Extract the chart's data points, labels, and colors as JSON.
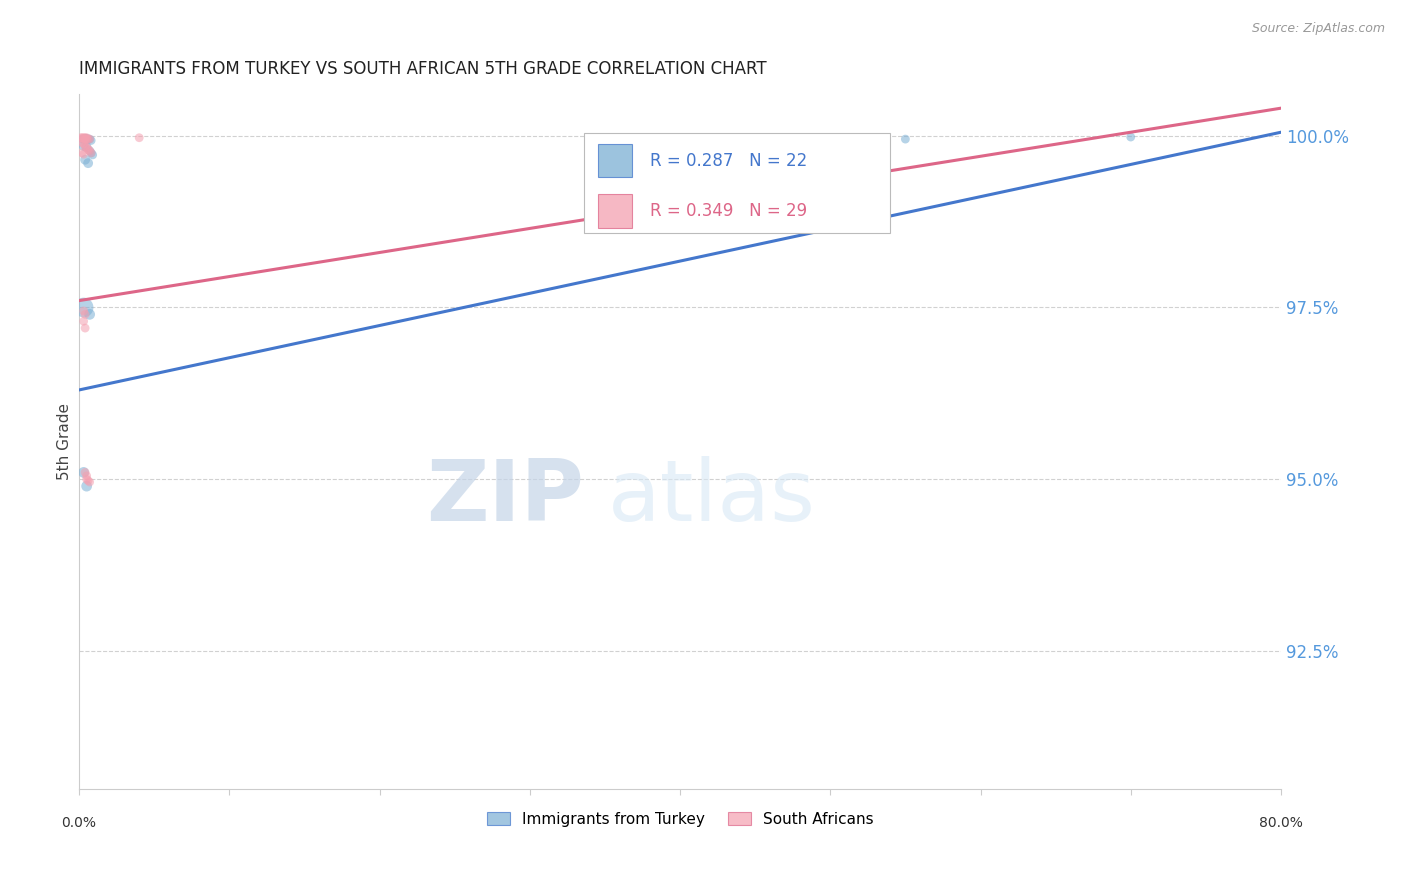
{
  "title": "IMMIGRANTS FROM TURKEY VS SOUTH AFRICAN 5TH GRADE CORRELATION CHART",
  "source": "Source: ZipAtlas.com",
  "ylabel": "5th Grade",
  "ylabel_right_ticks": [
    "100.0%",
    "97.5%",
    "95.0%",
    "92.5%"
  ],
  "ylabel_right_vals": [
    1.0,
    0.975,
    0.95,
    0.925
  ],
  "legend_blue_label": "Immigrants from Turkey",
  "legend_pink_label": "South Africans",
  "legend_r_blue": "R = 0.287",
  "legend_n_blue": "N = 22",
  "legend_r_pink": "R = 0.349",
  "legend_n_pink": "N = 29",
  "blue_color": "#7BAFD4",
  "pink_color": "#F4A0B0",
  "blue_line_color": "#4477CC",
  "pink_line_color": "#DD6688",
  "watermark_zip": "ZIP",
  "watermark_atlas": "atlas",
  "blue_scatter_x": [
    0.002,
    0.003,
    0.004,
    0.005,
    0.004,
    0.005,
    0.006,
    0.007,
    0.008,
    0.003,
    0.005,
    0.007,
    0.008,
    0.009,
    0.004,
    0.006,
    0.003,
    0.007,
    0.003,
    0.005,
    0.55,
    0.7
  ],
  "blue_scatter_y": [
    0.9995,
    0.9995,
    0.9995,
    0.9995,
    0.9995,
    0.9995,
    0.9995,
    0.9995,
    0.9993,
    0.9985,
    0.9983,
    0.9978,
    0.9975,
    0.9972,
    0.9965,
    0.996,
    0.975,
    0.974,
    0.951,
    0.949,
    0.9995,
    0.9998
  ],
  "blue_scatter_size": [
    40,
    40,
    50,
    50,
    40,
    40,
    40,
    40,
    40,
    50,
    50,
    40,
    40,
    40,
    50,
    50,
    200,
    60,
    60,
    60,
    40,
    40
  ],
  "pink_scatter_x": [
    0.001,
    0.002,
    0.003,
    0.004,
    0.005,
    0.003,
    0.004,
    0.005,
    0.006,
    0.007,
    0.002,
    0.003,
    0.004,
    0.005,
    0.006,
    0.007,
    0.008,
    0.002,
    0.003,
    0.003,
    0.004,
    0.004,
    0.005,
    0.003,
    0.004,
    0.005,
    0.006,
    0.007,
    0.04
  ],
  "pink_scatter_y": [
    0.9997,
    0.9997,
    0.9997,
    0.9997,
    0.9997,
    0.9995,
    0.9995,
    0.9995,
    0.9995,
    0.9995,
    0.999,
    0.9988,
    0.9985,
    0.9983,
    0.998,
    0.9978,
    0.9975,
    0.9975,
    0.9973,
    0.973,
    0.972,
    0.951,
    0.9505,
    0.9745,
    0.974,
    0.95,
    0.9498,
    0.9496,
    0.9997
  ],
  "pink_scatter_size": [
    40,
    40,
    40,
    40,
    40,
    40,
    40,
    40,
    40,
    40,
    40,
    40,
    40,
    40,
    40,
    40,
    40,
    40,
    40,
    40,
    40,
    40,
    40,
    40,
    40,
    40,
    40,
    40,
    40
  ],
  "blue_line_x": [
    0.0,
    0.8
  ],
  "blue_line_y": [
    0.963,
    1.0005
  ],
  "pink_line_x": [
    0.0,
    0.8
  ],
  "pink_line_y": [
    0.976,
    1.004
  ],
  "xlim": [
    0.0,
    0.8
  ],
  "ylim": [
    0.905,
    1.006
  ],
  "grid_color": "#CCCCCC",
  "background_color": "#FFFFFF",
  "right_tick_color": "#5599DD"
}
